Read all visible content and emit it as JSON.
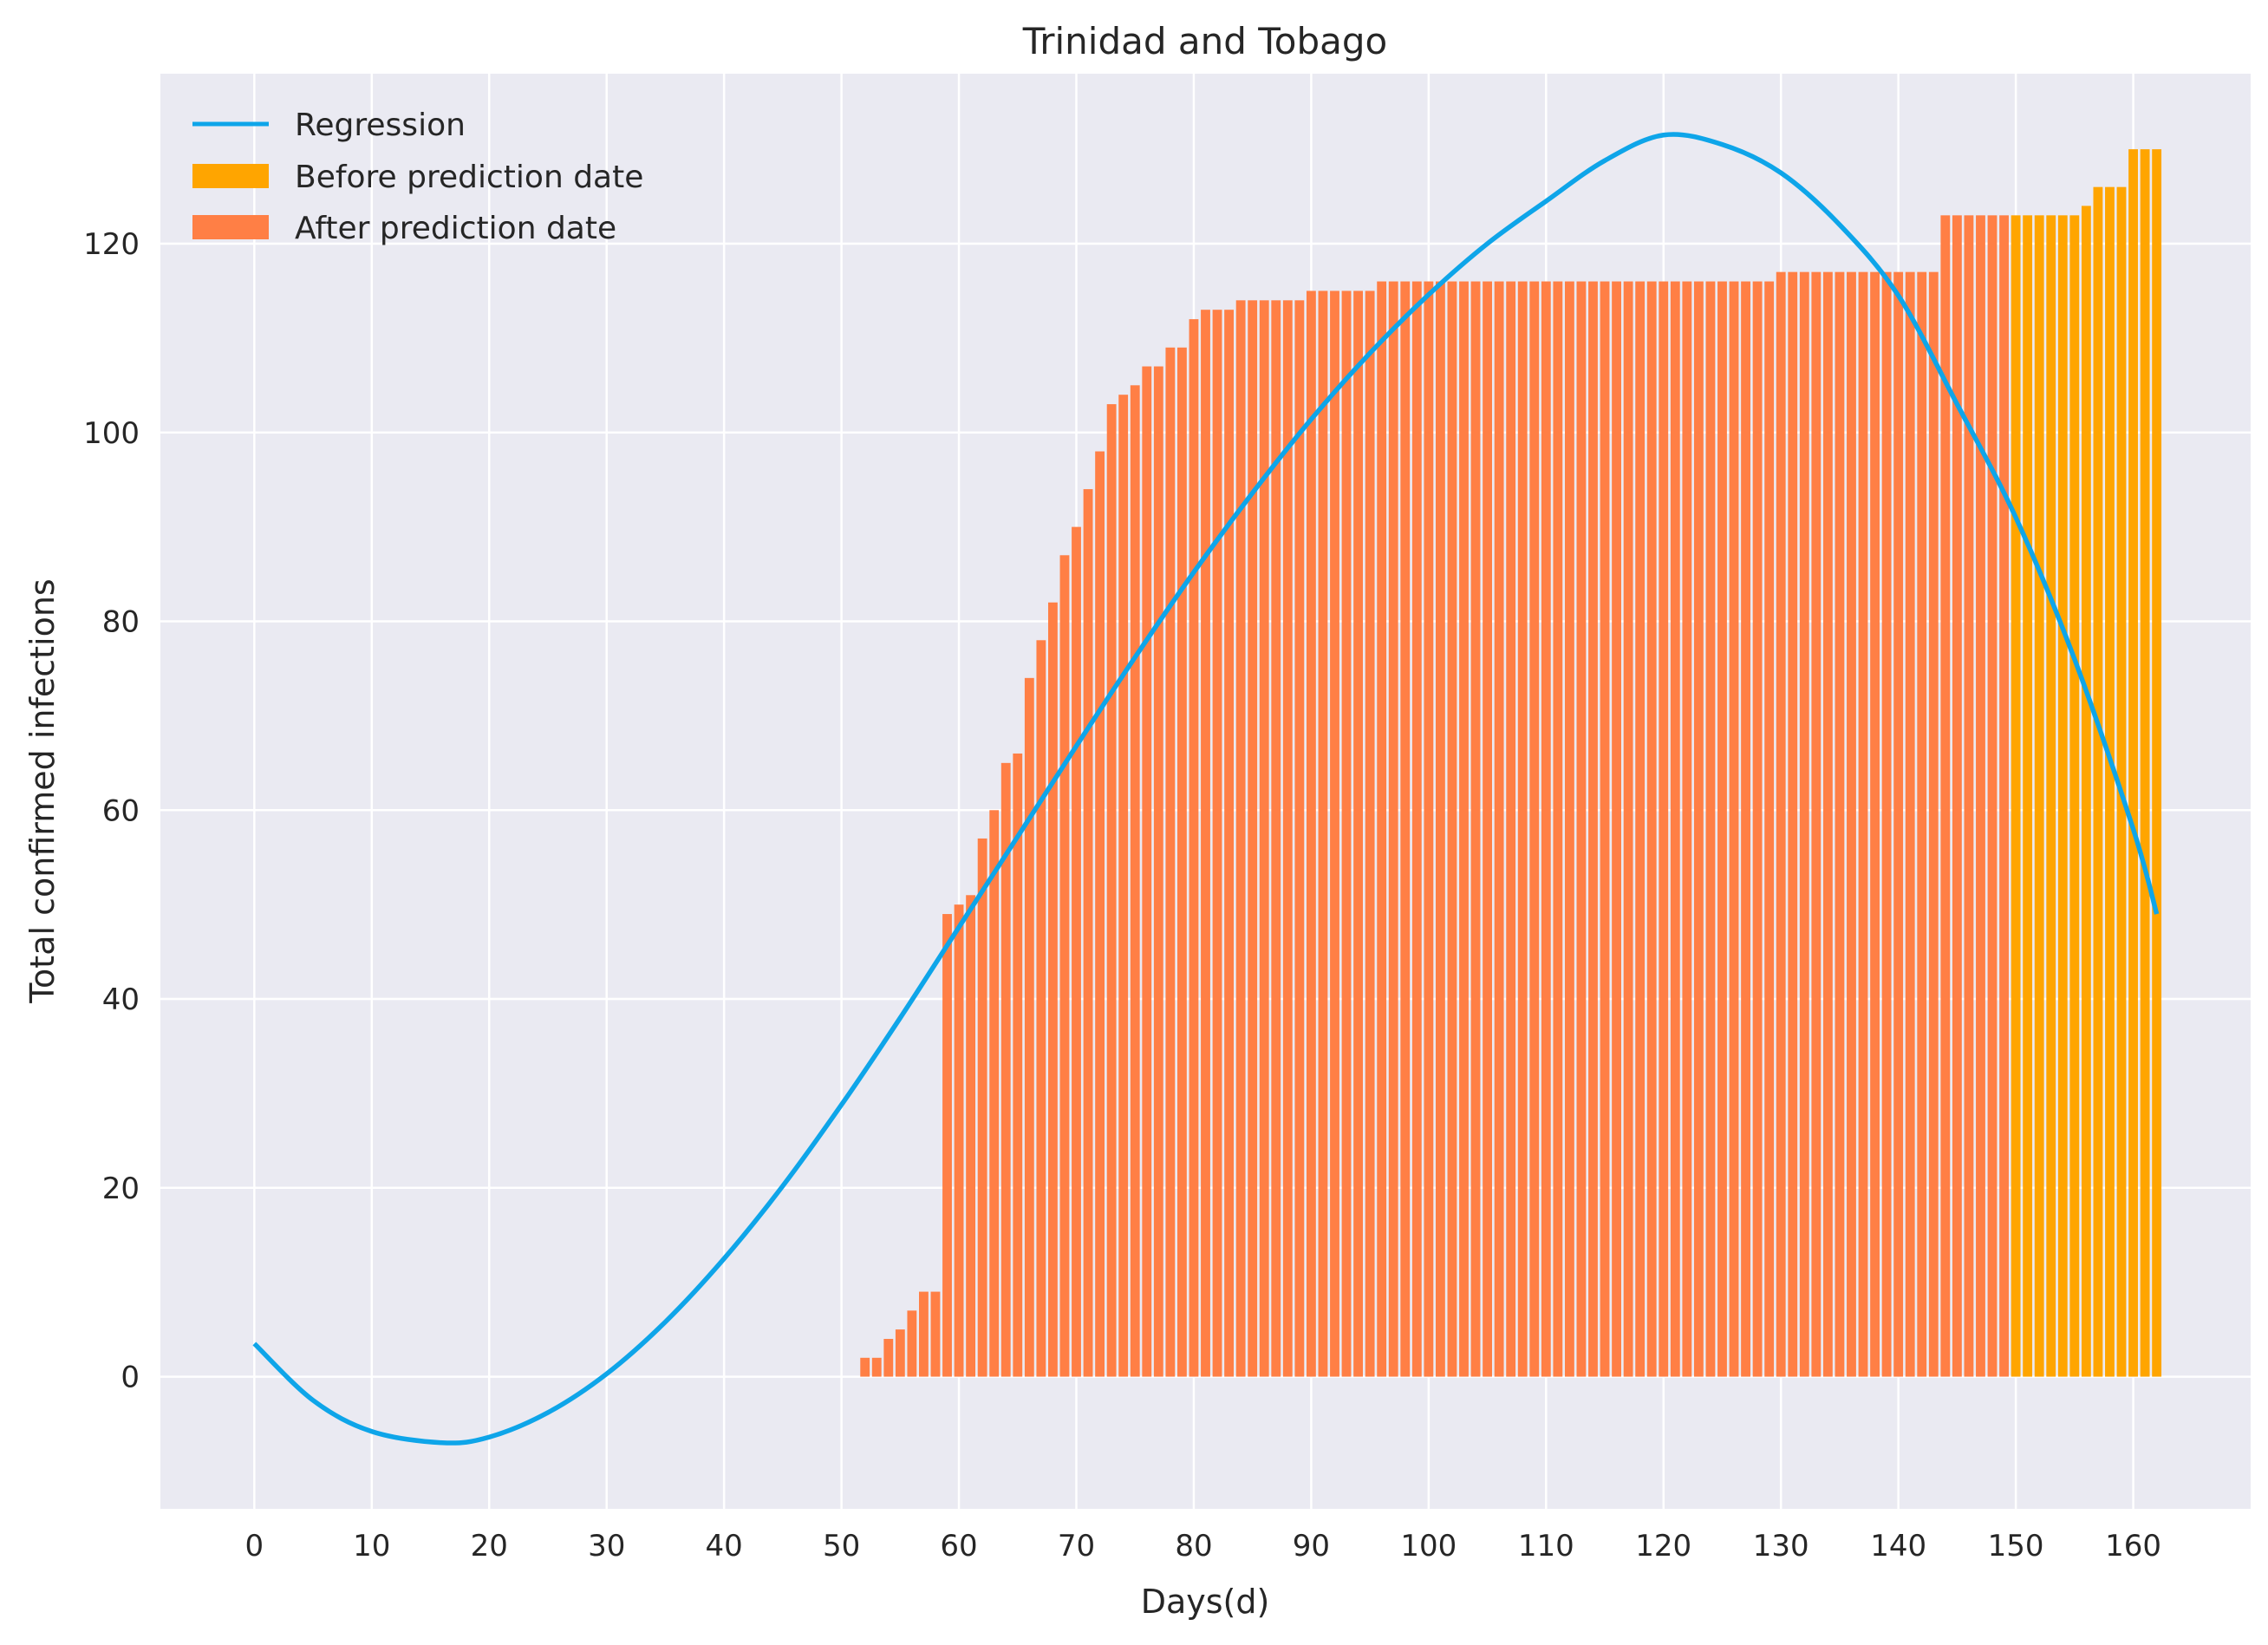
{
  "chart_data": {
    "type": "bar",
    "title": "Trinidad and Tobago",
    "xlabel": "Days(d)",
    "ylabel": "Total confirmed infections",
    "xlim": [
      -8,
      170
    ],
    "ylim": [
      -14,
      138
    ],
    "xticks": [
      0,
      10,
      20,
      30,
      40,
      50,
      60,
      70,
      80,
      90,
      100,
      110,
      120,
      130,
      140,
      150,
      160
    ],
    "yticks": [
      0,
      20,
      40,
      60,
      80,
      100,
      120
    ],
    "grid": true,
    "legend_position": "top-left",
    "colors": {
      "background": "#EAEAF2",
      "grid": "#FFFFFF",
      "regression": "#0EA5E9",
      "before_prediction": "#FFA500",
      "after_prediction": "#FF7F45"
    },
    "legend": [
      {
        "key": "regression",
        "label": "Regression",
        "kind": "line"
      },
      {
        "key": "before_prediction",
        "label": "Before prediction date",
        "kind": "patch"
      },
      {
        "key": "after_prediction",
        "label": "After prediction date",
        "kind": "patch"
      }
    ],
    "series": [
      {
        "name": "After prediction date",
        "key": "after_prediction",
        "kind": "bar",
        "x": [
          52,
          53,
          54,
          55,
          56,
          57,
          58,
          59,
          60,
          61,
          62,
          63,
          64,
          65,
          66,
          67,
          68,
          69,
          70,
          71,
          72,
          73,
          74,
          75,
          76,
          77,
          78,
          79,
          80,
          81,
          82,
          83,
          84,
          85,
          86,
          87,
          88,
          89,
          90,
          91,
          92,
          93,
          94,
          95,
          96,
          97,
          98,
          99,
          100,
          101,
          102,
          103,
          104,
          105,
          106,
          107,
          108,
          109,
          110,
          111,
          112,
          113,
          114,
          115,
          116,
          117,
          118,
          119,
          120,
          121,
          122,
          123,
          124,
          125,
          126,
          127,
          128,
          129,
          130,
          131,
          132,
          133,
          134,
          135,
          136,
          137,
          138,
          139,
          140,
          141,
          142,
          143,
          144,
          145,
          146,
          147,
          148,
          149
        ],
        "values": [
          2,
          2,
          4,
          5,
          7,
          9,
          9,
          49,
          50,
          51,
          57,
          60,
          65,
          66,
          74,
          78,
          82,
          87,
          90,
          94,
          98,
          103,
          104,
          105,
          107,
          107,
          109,
          109,
          112,
          113,
          113,
          113,
          114,
          114,
          114,
          114,
          114,
          114,
          115,
          115,
          115,
          115,
          115,
          115,
          116,
          116,
          116,
          116,
          116,
          116,
          116,
          116,
          116,
          116,
          116,
          116,
          116,
          116,
          116,
          116,
          116,
          116,
          116,
          116,
          116,
          116,
          116,
          116,
          116,
          116,
          116,
          116,
          116,
          116,
          116,
          116,
          116,
          116,
          117,
          117,
          117,
          117,
          117,
          117,
          117,
          117,
          117,
          117,
          117,
          117,
          117,
          117,
          123,
          123,
          123,
          123,
          123,
          123
        ]
      },
      {
        "name": "Before prediction date",
        "key": "before_prediction",
        "kind": "bar",
        "x": [
          150,
          151,
          152,
          153,
          154,
          155,
          156,
          157,
          158,
          159,
          160,
          161,
          162
        ],
        "values": [
          123,
          123,
          123,
          123,
          123,
          123,
          124,
          126,
          126,
          126,
          130,
          130,
          130
        ]
      },
      {
        "name": "Regression",
        "key": "regression",
        "kind": "line",
        "x": [
          0,
          5,
          10,
          16,
          20,
          25,
          30,
          35,
          40,
          45,
          50,
          55,
          60,
          65,
          70,
          75,
          80,
          85,
          90,
          95,
          100,
          105,
          110,
          115,
          120,
          125,
          130,
          135,
          140,
          145,
          150,
          155,
          160,
          162
        ],
        "values": [
          3.5,
          -2.5,
          -5.8,
          -7,
          -6.4,
          -3.8,
          0.3,
          5.8,
          12.5,
          20.2,
          28.8,
          38.0,
          47.6,
          57.2,
          66.8,
          76.2,
          85.2,
          93.6,
          101.4,
          108.4,
          114.6,
          120.0,
          124.5,
          128.8,
          131.5,
          130.5,
          127.5,
          122.0,
          114.5,
          103.0,
          91.0,
          76.0,
          58.0,
          49.0
        ]
      }
    ]
  }
}
